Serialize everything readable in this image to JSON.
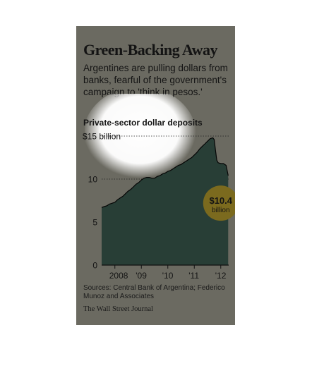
{
  "header": {
    "title": "Green-Backing Away",
    "subtitle": "Argentines are pulling dollars from banks, fearful of the government's campaign to 'think in pesos.'"
  },
  "chart_data": {
    "type": "area",
    "title": "Private-sector dollar deposits",
    "ylabel": "",
    "xlabel": "",
    "y_unit_label": "$15 billion",
    "ylim": [
      0,
      15
    ],
    "yticks": [
      0,
      5,
      10,
      15
    ],
    "ytick_labels": [
      "0",
      "5",
      "10",
      "$15 billion"
    ],
    "xlim": [
      2007.5,
      2012.3
    ],
    "xtick_positions": [
      2008,
      2009,
      2010,
      2011,
      2012
    ],
    "xtick_labels": [
      "2008",
      "'09",
      "'10",
      "'11",
      "'12"
    ],
    "gridlines": "dotted horizontal at 10 and 15",
    "series": [
      {
        "x": [
          2007.5,
          2007.6,
          2007.7,
          2007.8,
          2007.9,
          2008.0,
          2008.1,
          2008.2,
          2008.3,
          2008.4,
          2008.5,
          2008.6,
          2008.7,
          2008.8,
          2008.9,
          2009.0,
          2009.1,
          2009.2,
          2009.3,
          2009.4,
          2009.5,
          2009.6,
          2009.7,
          2009.8,
          2009.9,
          2010.0,
          2010.1,
          2010.2,
          2010.3,
          2010.4,
          2010.5,
          2010.6,
          2010.7,
          2010.8,
          2010.9,
          2011.0,
          2011.1,
          2011.2,
          2011.3,
          2011.4,
          2011.5,
          2011.6,
          2011.7,
          2011.75,
          2011.8,
          2011.85,
          2011.9,
          2012.0,
          2012.1,
          2012.2,
          2012.28
        ],
        "values": [
          6.7,
          6.8,
          6.9,
          7.1,
          7.2,
          7.3,
          7.6,
          7.8,
          8.0,
          8.3,
          8.6,
          8.8,
          9.1,
          9.4,
          9.6,
          9.9,
          10.1,
          10.2,
          10.2,
          10.1,
          10.1,
          10.3,
          10.4,
          10.6,
          10.7,
          10.9,
          11.0,
          11.2,
          11.4,
          11.6,
          11.7,
          11.9,
          12.1,
          12.3,
          12.5,
          12.8,
          13.1,
          13.5,
          13.8,
          14.1,
          14.4,
          14.7,
          14.8,
          14.6,
          13.4,
          12.2,
          11.9,
          11.8,
          11.8,
          11.6,
          10.4
        ]
      }
    ],
    "annotations": [
      {
        "value": "$10.4",
        "unit": "billion",
        "x": 2012.0,
        "y": 7.2
      }
    ],
    "colors": {
      "background": "#6b6a61",
      "area_fill": "#283e36",
      "line": "#050505",
      "callout": "#7b6a1e",
      "highlight": "#f4f4f2"
    }
  },
  "footer": {
    "sources": "Sources: Central Bank of Argentina; Federico Munoz and Associates",
    "credit": "The Wall Street Journal"
  }
}
